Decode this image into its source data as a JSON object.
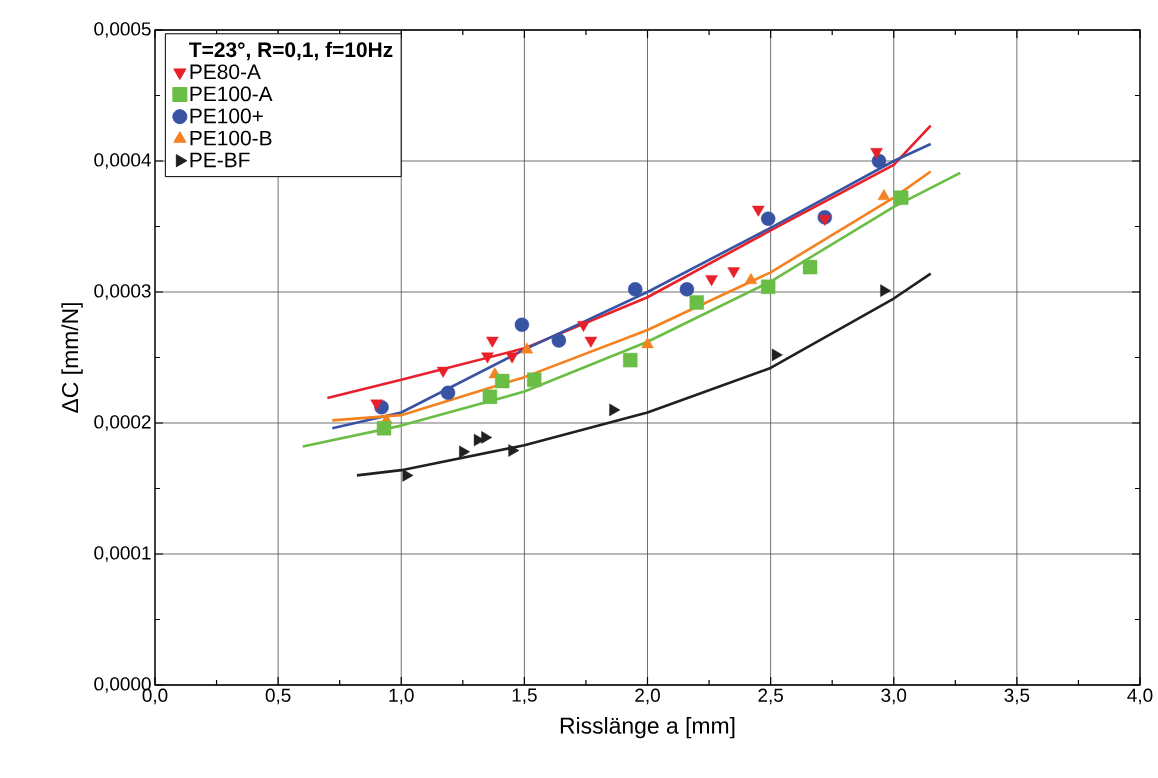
{
  "chart_data": {
    "type": "scatter",
    "xlabel": "Risslänge a [mm]",
    "ylabel": "ΔC [mm/N]",
    "legend_title": "T=23°, R=0,1, f=10Hz",
    "xlim": [
      0,
      4
    ],
    "ylim": [
      0,
      0.0005
    ],
    "xticks": [
      {
        "value": 0,
        "label": "0,0"
      },
      {
        "value": 0.5,
        "label": "0,5"
      },
      {
        "value": 1,
        "label": "1,0"
      },
      {
        "value": 1.5,
        "label": "1,5"
      },
      {
        "value": 2,
        "label": "2,0"
      },
      {
        "value": 2.5,
        "label": "2,5"
      },
      {
        "value": 3,
        "label": "3,0"
      },
      {
        "value": 3.5,
        "label": "3,5"
      },
      {
        "value": 4,
        "label": "4,0"
      }
    ],
    "yticks": [
      {
        "value": 0,
        "label": "0,0000"
      },
      {
        "value": 0.0001,
        "label": "0,0001"
      },
      {
        "value": 0.0002,
        "label": "0,0002"
      },
      {
        "value": 0.0003,
        "label": "0,0003"
      },
      {
        "value": 0.0004,
        "label": "0,0004"
      },
      {
        "value": 0.0005,
        "label": "0,0005"
      }
    ],
    "grid": true,
    "legend": "top left",
    "series": [
      {
        "name": "PE80-A",
        "marker": "triangle-down",
        "color": "#e8202a",
        "x": [
          0.9,
          1.17,
          1.35,
          1.37,
          1.45,
          1.74,
          1.77,
          2.26,
          2.35,
          2.45,
          2.72,
          2.93
        ],
        "values": [
          0.000215,
          0.00024,
          0.000251,
          0.000263,
          0.000251,
          0.000275,
          0.000263,
          0.00031,
          0.000316,
          0.000363,
          0.000356,
          0.000407
        ]
      },
      {
        "name": "PE100-A",
        "marker": "square",
        "color": "#6abd45",
        "x": [
          0.93,
          1.36,
          1.41,
          1.54,
          1.93,
          2.2,
          2.49,
          2.66,
          3.03
        ],
        "values": [
          0.000196,
          0.00022,
          0.000232,
          0.000233,
          0.000248,
          0.000292,
          0.000304,
          0.000319,
          0.000372
        ]
      },
      {
        "name": "PE100+",
        "marker": "circle",
        "color": "#3953a4",
        "x": [
          0.92,
          1.19,
          1.49,
          1.64,
          1.95,
          2.16,
          2.49,
          2.72,
          2.94
        ],
        "values": [
          0.000212,
          0.000223,
          0.000275,
          0.000263,
          0.000302,
          0.000302,
          0.000356,
          0.000357,
          0.0004
        ]
      },
      {
        "name": "PE100-B",
        "marker": "triangle",
        "color": "#f58220",
        "x": [
          0.94,
          1.38,
          1.51,
          2.0,
          2.42,
          2.96
        ],
        "values": [
          0.000202,
          0.000237,
          0.000256,
          0.00026,
          0.000309,
          0.000373
        ]
      },
      {
        "name": "PE-BF",
        "marker": "triangle-right",
        "color": "#231f20",
        "x": [
          1.02,
          1.25,
          1.31,
          1.34,
          1.45,
          1.86,
          2.52,
          2.96
        ],
        "values": [
          0.00016,
          0.000178,
          0.000187,
          0.000189,
          0.000179,
          0.00021,
          0.000252,
          0.000301
        ]
      },
      {
        "type": "line",
        "color": "#e8202a",
        "x": [
          0.7,
          1.0,
          1.5,
          2.0,
          2.5,
          3.0,
          3.15
        ],
        "values": [
          0.000219,
          0.000233,
          0.000257,
          0.000296,
          0.000347,
          0.000397,
          0.000427
        ]
      },
      {
        "type": "line",
        "color": "#6abd45",
        "x": [
          0.6,
          1.0,
          1.5,
          2.0,
          2.5,
          3.0,
          3.27
        ],
        "values": [
          0.000182,
          0.000198,
          0.000224,
          0.000262,
          0.000308,
          0.000365,
          0.000391
        ]
      },
      {
        "type": "line",
        "color": "#3953a4",
        "x": [
          0.72,
          1.0,
          1.5,
          2.0,
          2.5,
          3.0,
          3.15
        ],
        "values": [
          0.000196,
          0.000208,
          0.000256,
          0.0003,
          0.000349,
          0.0004,
          0.000413
        ]
      },
      {
        "type": "line",
        "color": "#f58220",
        "x": [
          0.72,
          1.0,
          1.5,
          2.0,
          2.5,
          3.0,
          3.15
        ],
        "values": [
          0.000202,
          0.000206,
          0.000235,
          0.000271,
          0.000315,
          0.000372,
          0.000392
        ]
      },
      {
        "type": "line",
        "color": "#231f20",
        "x": [
          0.82,
          1.0,
          1.5,
          2.0,
          2.5,
          3.0,
          3.15
        ],
        "values": [
          0.00016,
          0.000164,
          0.000183,
          0.000208,
          0.000242,
          0.000295,
          0.000314
        ]
      }
    ]
  }
}
